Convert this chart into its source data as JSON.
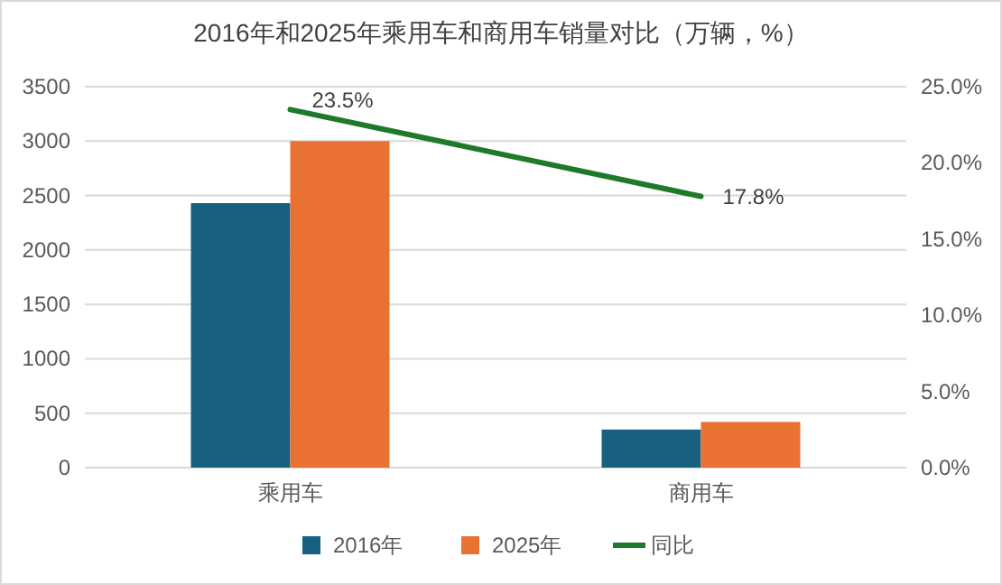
{
  "chart_data": {
    "type": "bar",
    "title": "2016年和2025年乘用车和商用车销量对比（万辆，%）",
    "categories": [
      "乘用车",
      "商用车"
    ],
    "series": [
      {
        "name": "2016年",
        "color": "#17607f",
        "values": [
          2430,
          350
        ]
      },
      {
        "name": "2025年",
        "color": "#e97132",
        "values": [
          3000,
          420
        ]
      },
      {
        "name": "同比",
        "type": "line",
        "axis": "y2",
        "color": "#1e7a2a",
        "values": [
          23.5,
          17.8
        ],
        "value_labels": [
          "23.5%",
          "17.8%"
        ]
      }
    ],
    "ylim": [
      0,
      3500
    ],
    "yticks": [
      0,
      500,
      1000,
      1500,
      2000,
      2500,
      3000,
      3500
    ],
    "y2lim": [
      0,
      25
    ],
    "y2ticks": [
      {
        "value": 0,
        "label": "0.0%"
      },
      {
        "value": 5,
        "label": "5.0%"
      },
      {
        "value": 10,
        "label": "10.0%"
      },
      {
        "value": 15,
        "label": "15.0%"
      },
      {
        "value": 20,
        "label": "20.0%"
      },
      {
        "value": 25,
        "label": "25.0%"
      }
    ],
    "grid": "y",
    "legend": "bottom"
  }
}
